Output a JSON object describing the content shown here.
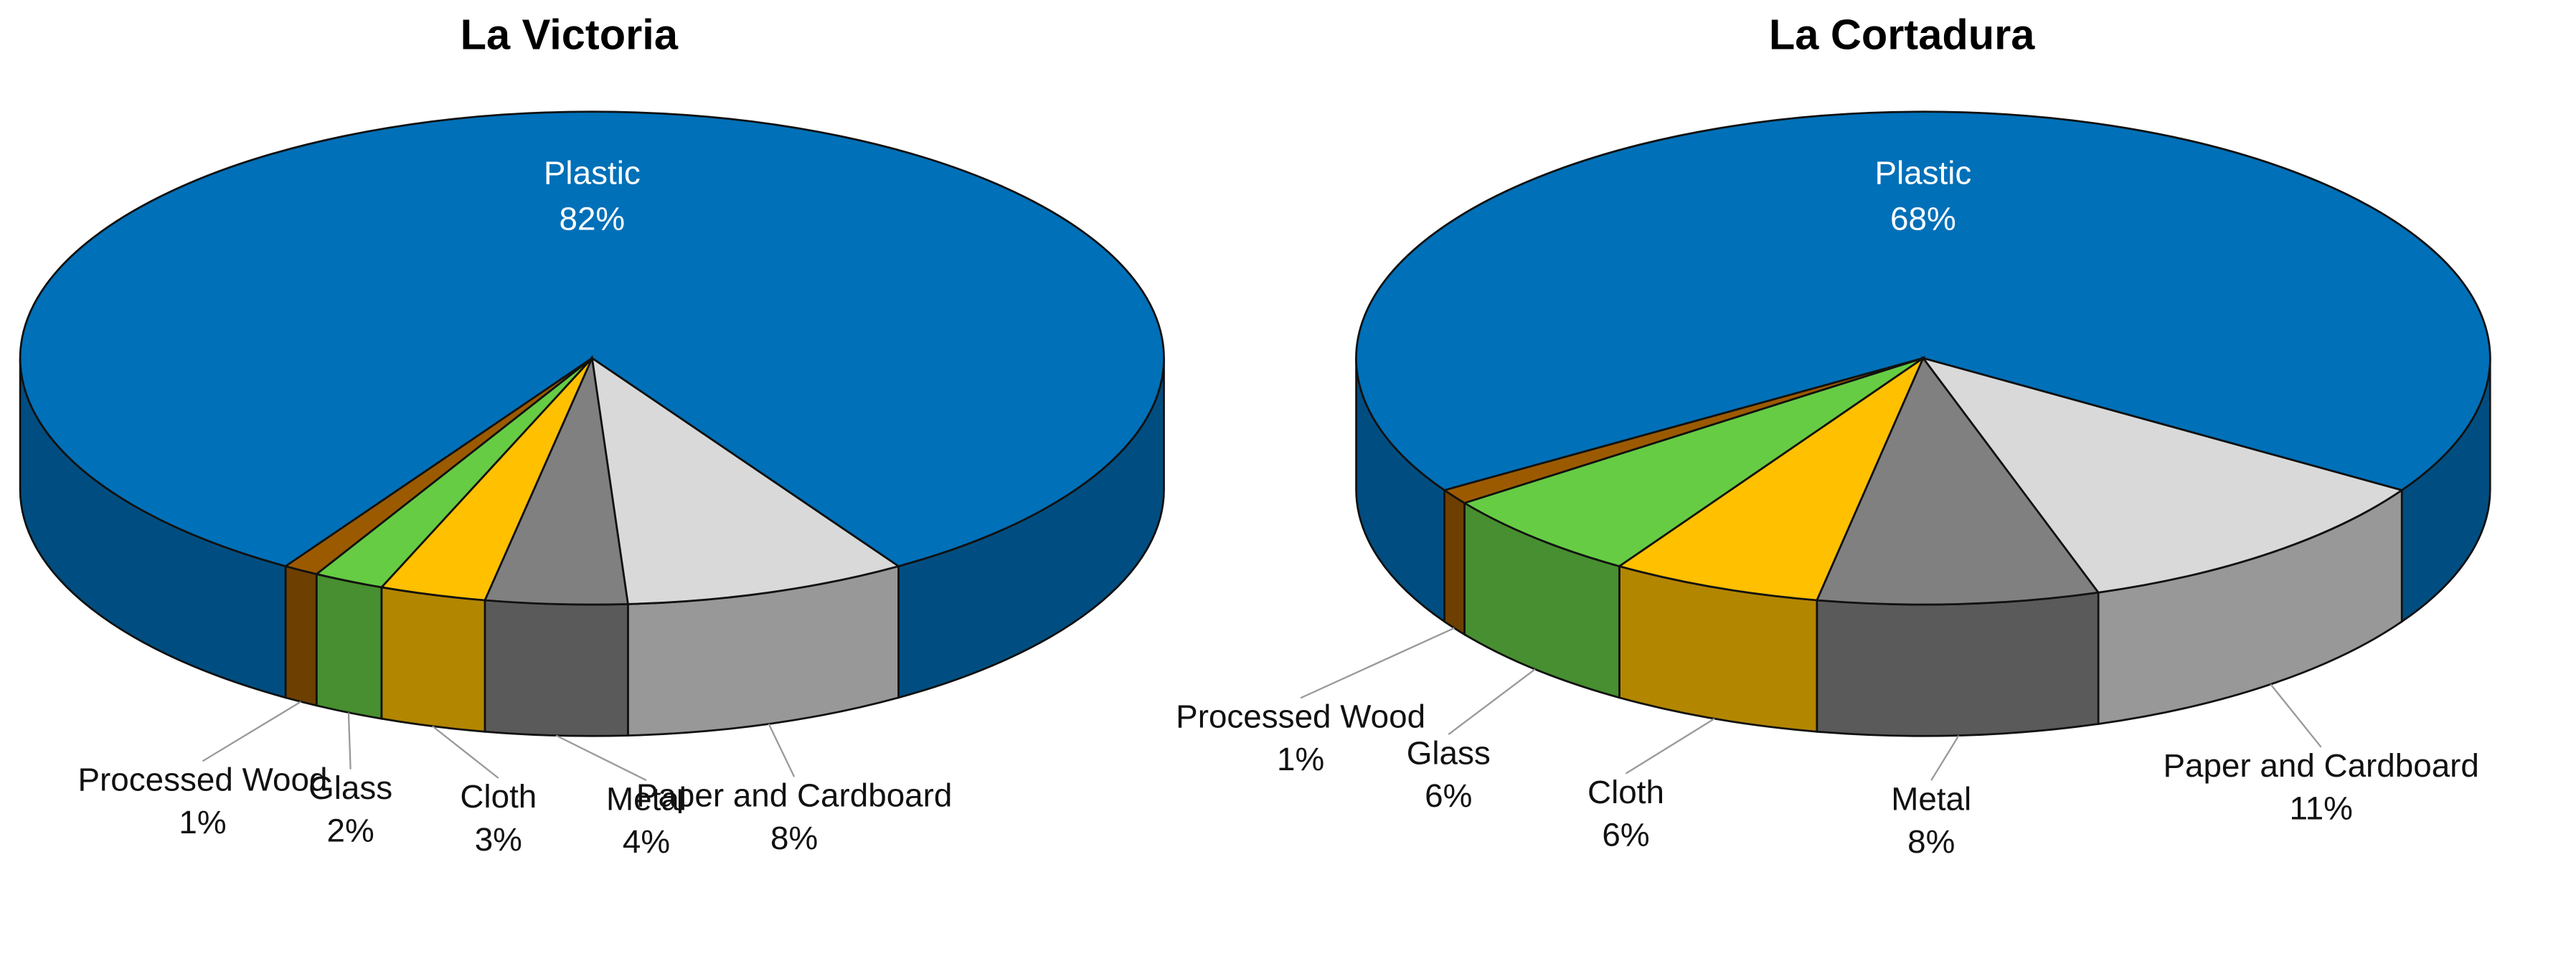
{
  "chart_data": [
    {
      "type": "pie",
      "title": "La Victoria",
      "categories": [
        "Plastic",
        "Paper and Cardboard",
        "Metal",
        "Cloth",
        "Glass",
        "Processed Wood"
      ],
      "values": [
        82,
        8,
        4,
        3,
        2,
        1
      ],
      "value_labels": [
        "82%",
        "8%",
        "4%",
        "3%",
        "2%",
        "1%"
      ],
      "colors": [
        "#0070b8",
        "#d9d9d9",
        "#808080",
        "#ffc000",
        "#66cc44",
        "#9c5a00"
      ]
    },
    {
      "type": "pie",
      "title": "La Cortadura",
      "categories": [
        "Plastic",
        "Paper and Cardboard",
        "Metal",
        "Cloth",
        "Glass",
        "Processed Wood"
      ],
      "values": [
        68,
        11,
        8,
        6,
        6,
        1
      ],
      "value_labels": [
        "68%",
        "11%",
        "8%",
        "6%",
        "6%",
        "1%"
      ],
      "colors": [
        "#0070b8",
        "#d9d9d9",
        "#808080",
        "#ffc000",
        "#66cc44",
        "#9c5a00"
      ]
    }
  ]
}
